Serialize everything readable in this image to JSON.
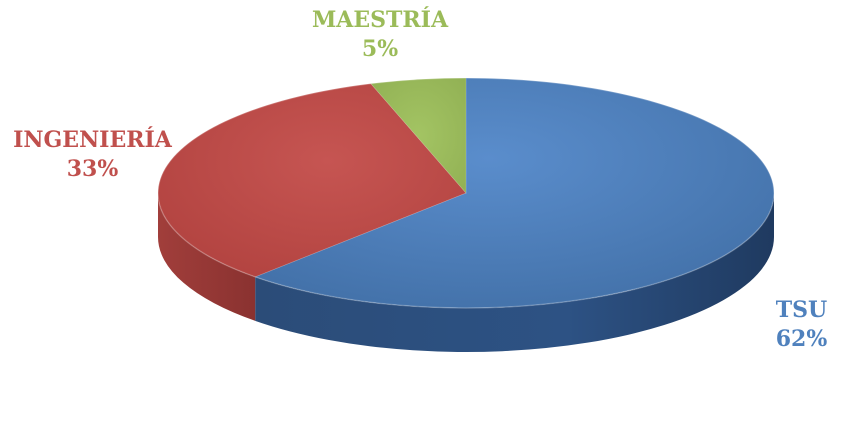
{
  "chart_data": {
    "type": "pie",
    "title": "",
    "categories": [
      "TSU",
      "INGENIERÍA",
      "MAESTRÍA"
    ],
    "values": [
      62,
      33,
      5
    ],
    "labels": [
      "62%",
      "33%",
      "5%"
    ],
    "colors": [
      "#4F81BD",
      "#C0504D",
      "#9BBB59"
    ],
    "label_colors": [
      "#4F81BD",
      "#C0504D",
      "#9BBB59"
    ],
    "style": "3d-pie",
    "legend": "none"
  }
}
